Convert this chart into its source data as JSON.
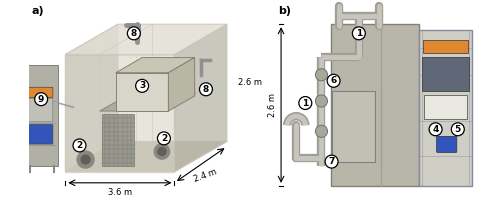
{
  "fig_width": 5.0,
  "fig_height": 2.02,
  "dpi": 100,
  "bg_color": "#ffffff",
  "panel_a_label": "a)",
  "panel_b_label": "b)",
  "chamber_wall": "#c8c6b8",
  "chamber_fill_front": "#d4d1c0",
  "chamber_fill_side": "#b8b6a6",
  "chamber_fill_top": "#dedad0",
  "floor_color": "#c0bdb0",
  "equip_gray": "#a8a89a",
  "equip_light": "#d8d6c8",
  "mesh_color": "#909088",
  "pipe_outer": "#a0a098",
  "pipe_inner": "#c8c6bc",
  "blue_accent": "#3355bb",
  "orange_accent": "#e08830",
  "rack_bg": "#c8c8be",
  "rack_frame": "#8888aa",
  "dark_screen": "#606878",
  "white_display": "#e8e8e0",
  "callout_fontsize": 6.5,
  "label_fontsize": 8,
  "dim_fontsize": 6
}
